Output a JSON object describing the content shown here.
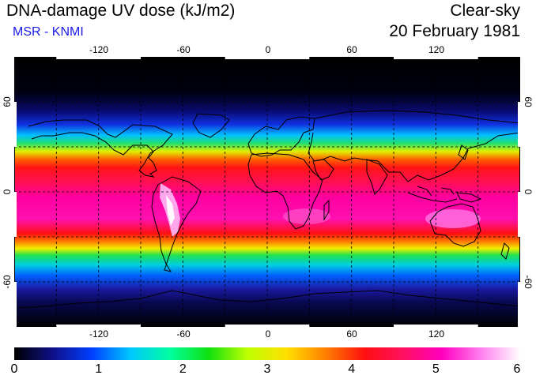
{
  "header": {
    "title": "DNA-damage UV dose (kJ/m2)",
    "subtitle": "MSR - KNMI",
    "sky_condition": "Clear-sky",
    "date": "20 February 1981"
  },
  "map": {
    "projection": "equirectangular",
    "lon_range": [
      -180,
      180
    ],
    "lat_range": [
      -90,
      90
    ],
    "lon_ticks": [
      "-120",
      "-60",
      "0",
      "60",
      "120"
    ],
    "lat_ticks_left": [
      "60",
      "0",
      "-60"
    ],
    "lat_ticks_right": [
      "60",
      "0",
      "-60"
    ],
    "grid_spacing_deg": 30,
    "coastline_color": "#000000"
  },
  "colorbar": {
    "min": 0,
    "max": 6,
    "tick_labels": [
      "0",
      "1",
      "2",
      "3",
      "4",
      "5",
      "6"
    ],
    "colors": [
      "#000000",
      "#10108a",
      "#0040ff",
      "#00c8ff",
      "#00ffa0",
      "#10e010",
      "#c0ff00",
      "#ffe000",
      "#ff8000",
      "#ff1010",
      "#ff1060",
      "#ff00c0",
      "#ff80f0",
      "#ffffff"
    ]
  }
}
